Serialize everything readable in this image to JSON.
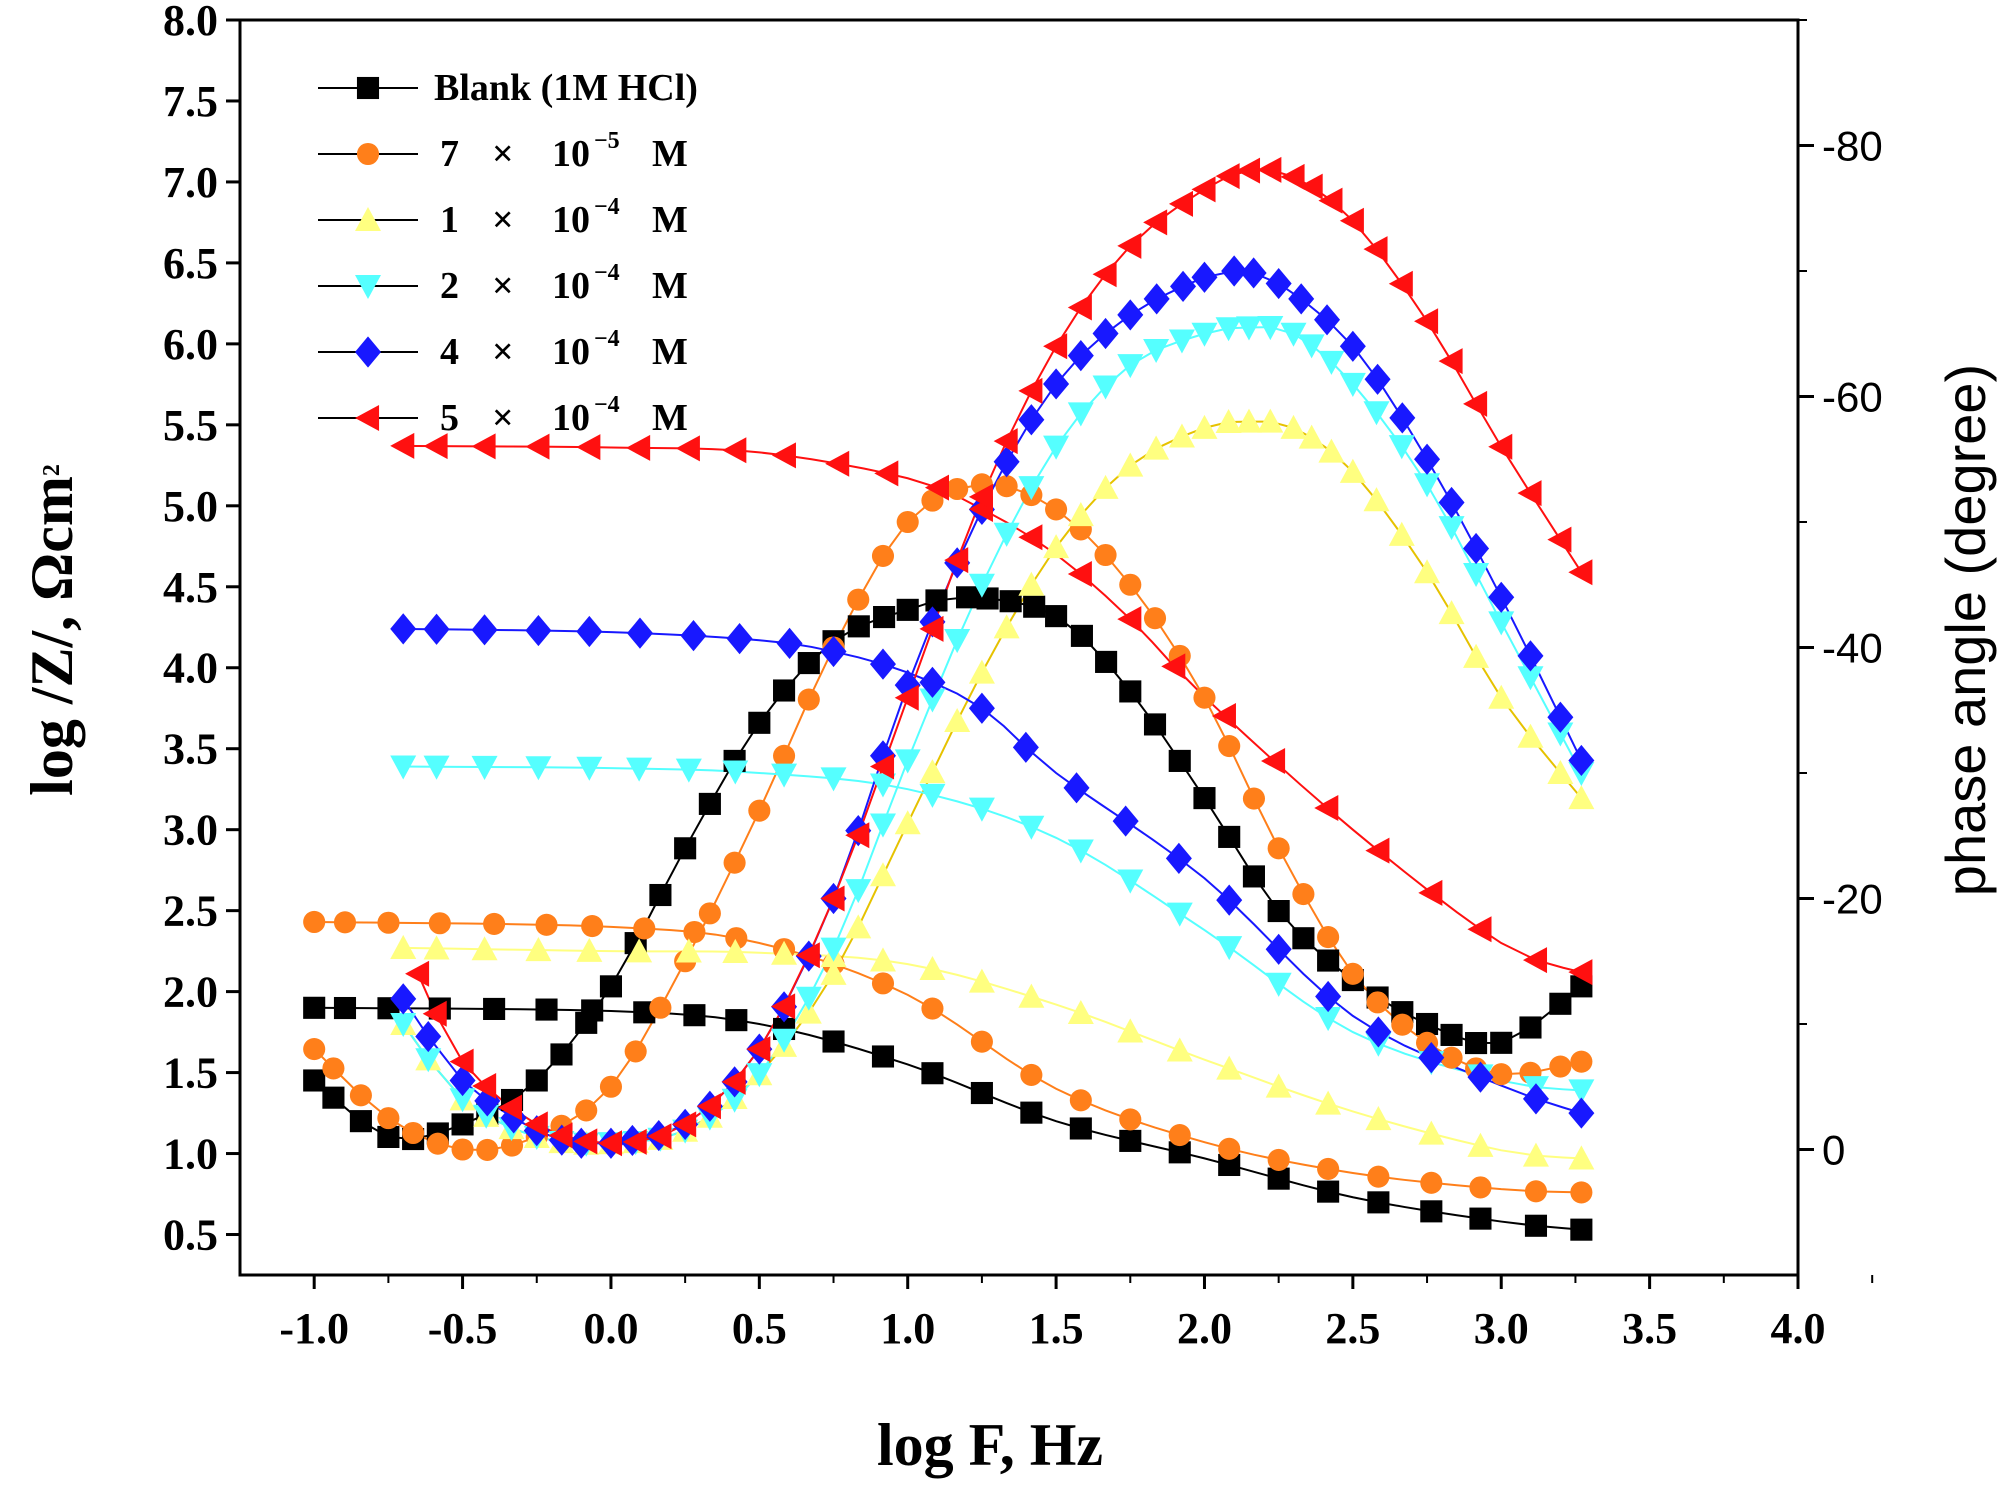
{
  "chart_data": {
    "type": "line",
    "title": "",
    "xlabel": "log F, Hz",
    "ylabel_left": {
      "text": "log /Z/, Ωcm",
      "superscript": "2"
    },
    "ylabel_right": "phase angle (degree)",
    "xlim": [
      -1.25,
      4.0
    ],
    "ylim_left": [
      0.25,
      8.0
    ],
    "ylim_right": [
      10,
      -90
    ],
    "x_ticks": [
      "-1.0",
      "-0.5",
      "0.0",
      "0.5",
      "1.0",
      "1.5",
      "2.0",
      "2.5",
      "3.0",
      "3.5",
      "4.0"
    ],
    "y_left_ticks": [
      "0.5",
      "1.0",
      "1.5",
      "2.0",
      "2.5",
      "3.0",
      "3.5",
      "4.0",
      "4.5",
      "5.0",
      "5.5",
      "6.0",
      "6.5",
      "7.0",
      "7.5",
      "8.0"
    ],
    "y_right_ticks": [
      "0",
      "-20",
      "-40",
      "-60",
      "-80"
    ],
    "legend_position": "top-left",
    "series": [
      {
        "name": "Blank (1M HCl)",
        "color": "#000000",
        "marker": "square",
        "legend": {
          "coef": "",
          "times": "",
          "base": "",
          "exp": "",
          "unit": ""
        },
        "bode_x": [
          -1.0,
          0.0,
          0.5,
          1.0,
          1.5,
          2.0,
          2.5,
          3.0,
          3.27
        ],
        "bode_logz": [
          1.9,
          1.88,
          1.8,
          1.55,
          1.2,
          0.97,
          0.73,
          0.58,
          0.53
        ],
        "phase_x": [
          -1.0,
          -0.75,
          -0.5,
          -0.25,
          0.0,
          0.25,
          0.5,
          0.75,
          1.0,
          1.2,
          1.5,
          1.75,
          2.0,
          2.25,
          2.5,
          2.75,
          3.0,
          3.27
        ],
        "phase_deg": [
          -5.5,
          -1,
          -2,
          -5.5,
          -13,
          -24,
          -34,
          -40.5,
          -43,
          -44,
          -42.5,
          -36.5,
          -28,
          -19,
          -13.5,
          -10,
          -8.5,
          -13
        ]
      },
      {
        "name": "7 × 10-5 M",
        "color": "#ff7f1a",
        "marker": "circle",
        "legend": {
          "coef": "7",
          "times": "×",
          "base": "10",
          "exp": "−5",
          "unit": "M"
        },
        "bode_x": [
          -1.0,
          0.0,
          0.5,
          1.0,
          1.5,
          2.0,
          2.5,
          3.0,
          3.27
        ],
        "bode_logz": [
          2.43,
          2.4,
          2.3,
          1.98,
          1.4,
          1.07,
          0.88,
          0.78,
          0.76
        ],
        "phase_x": [
          -1.0,
          -0.75,
          -0.5,
          -0.25,
          0.0,
          0.25,
          0.5,
          0.75,
          1.0,
          1.25,
          1.5,
          1.75,
          2.0,
          2.25,
          2.5,
          2.75,
          3.0,
          3.27
        ],
        "phase_deg": [
          -8,
          -2.5,
          0,
          -1,
          -5,
          -15,
          -27,
          -40,
          -50,
          -53,
          -51,
          -45,
          -36,
          -24,
          -14,
          -8.5,
          -6,
          -7
        ]
      },
      {
        "name": "1 × 10-4 M",
        "color": "#ffff80",
        "marker": "triangle-up",
        "legend": {
          "coef": "1",
          "times": "×",
          "base": "10",
          "exp": "−4",
          "unit": "M"
        },
        "bode_x": [
          -0.7,
          0.0,
          0.5,
          1.0,
          1.5,
          2.0,
          2.5,
          3.0,
          3.27
        ],
        "bode_logz": [
          2.27,
          2.25,
          2.24,
          2.17,
          1.92,
          1.58,
          1.26,
          1.02,
          0.97
        ],
        "phase_x": [
          -0.7,
          -0.5,
          -0.25,
          0.0,
          0.25,
          0.5,
          0.75,
          1.0,
          1.25,
          1.5,
          1.75,
          2.0,
          2.15,
          2.3,
          2.5,
          2.75,
          3.0,
          3.27
        ],
        "phase_deg": [
          -10,
          -4,
          -1,
          -0.5,
          -1.5,
          -6,
          -14,
          -26,
          -38,
          -48,
          -54.5,
          -57.5,
          -58,
          -57.5,
          -54,
          -46,
          -36,
          -28
        ]
      },
      {
        "name": "2 × 10-4 M",
        "color": "#55ffff",
        "marker": "triangle-down",
        "legend": {
          "coef": "2",
          "times": "×",
          "base": "10",
          "exp": "−4",
          "unit": "M"
        },
        "bode_x": [
          -0.7,
          0.0,
          0.5,
          1.0,
          1.5,
          2.0,
          2.5,
          3.0,
          3.27
        ],
        "bode_logz": [
          3.39,
          3.38,
          3.35,
          3.25,
          2.95,
          2.38,
          1.75,
          1.45,
          1.39
        ],
        "phase_x": [
          -0.7,
          -0.5,
          -0.25,
          0.0,
          0.25,
          0.5,
          0.75,
          1.0,
          1.25,
          1.5,
          1.75,
          2.0,
          2.15,
          2.3,
          2.5,
          2.75,
          3.0,
          3.27
        ],
        "phase_deg": [
          -10,
          -4,
          -1,
          -0.5,
          -1.5,
          -6,
          -16,
          -31,
          -45,
          -56,
          -62.5,
          -65,
          -65.5,
          -65,
          -61,
          -53,
          -42,
          -30
        ]
      },
      {
        "name": "4 × 10-4 M",
        "color": "#1818ff",
        "marker": "diamond",
        "legend": {
          "coef": "4",
          "times": "×",
          "base": "10",
          "exp": "−4",
          "unit": "M"
        },
        "bode_x": [
          -0.7,
          0.0,
          0.5,
          0.75,
          1.0,
          1.25,
          1.5,
          2.0,
          2.5,
          3.0,
          3.27
        ],
        "bode_logz": [
          4.24,
          4.22,
          4.17,
          4.1,
          3.97,
          3.75,
          3.35,
          2.7,
          1.85,
          1.42,
          1.25
        ],
        "phase_x": [
          -0.7,
          -0.5,
          -0.25,
          -0.1,
          0.0,
          0.25,
          0.5,
          0.75,
          1.0,
          1.25,
          1.5,
          1.75,
          2.0,
          2.1,
          2.25,
          2.5,
          2.75,
          3.0,
          3.27
        ],
        "phase_deg": [
          -12,
          -5.5,
          -1.5,
          -0.5,
          -0.5,
          -2,
          -8,
          -20,
          -37,
          -51,
          -61,
          -66.5,
          -69.5,
          -70,
          -69,
          -64,
          -55,
          -44,
          -31
        ]
      },
      {
        "name": "5 × 10-4 M",
        "color": "#ff1010",
        "marker": "triangle-left",
        "legend": {
          "coef": "5",
          "times": "×",
          "base": "10",
          "exp": "−4",
          "unit": "M"
        },
        "bode_x": [
          -0.7,
          0.0,
          0.5,
          1.0,
          1.25,
          1.5,
          1.75,
          2.0,
          2.5,
          3.0,
          3.27
        ],
        "bode_logz": [
          5.37,
          5.36,
          5.33,
          5.17,
          4.98,
          4.7,
          4.3,
          3.82,
          3.0,
          2.3,
          2.12
        ],
        "phase_x": [
          -0.65,
          -0.5,
          -0.25,
          0.0,
          0.25,
          0.5,
          0.75,
          1.0,
          1.25,
          1.5,
          1.75,
          2.0,
          2.15,
          2.3,
          2.5,
          2.75,
          3.0,
          3.27
        ],
        "phase_deg": [
          -14,
          -7,
          -2,
          -0.5,
          -2,
          -8,
          -20,
          -36,
          -52,
          -64,
          -72,
          -76.5,
          -78,
          -77.5,
          -74,
          -66,
          -56,
          -46
        ]
      }
    ]
  }
}
